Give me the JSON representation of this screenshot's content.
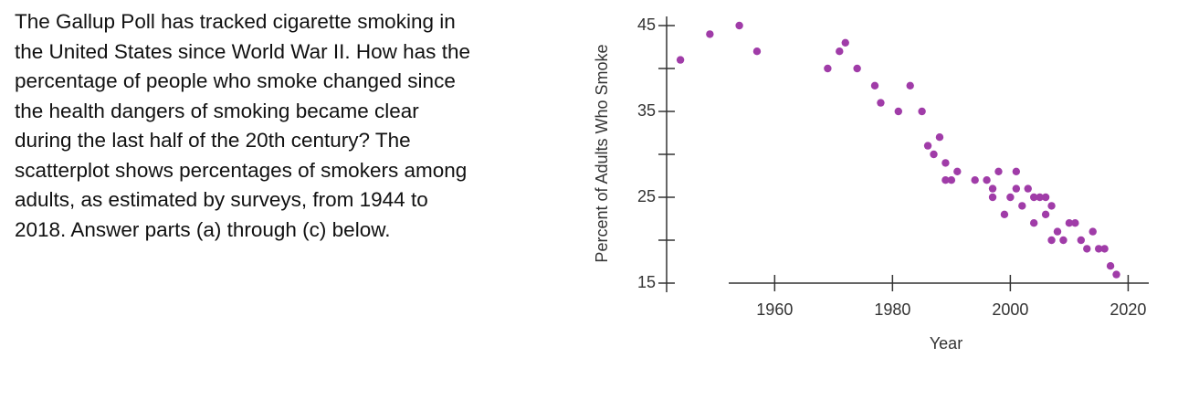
{
  "question": {
    "lines": [
      "The Gallup Poll has tracked cigarette smoking in",
      "the United States since World War II. How has the",
      "percentage of people who smoke changed since",
      "the health dangers of smoking became clear",
      "during the last half of the 20th century? The",
      "scatterplot shows percentages of smokers among",
      "adults, as estimated by surveys, from 1944 to",
      "2018. Answer parts (a) through (c) below."
    ]
  },
  "chart_data": {
    "type": "scatter",
    "x_label": "Year",
    "y_label": "Percent of Adults Who Smoke",
    "color": "#a03ca8",
    "xlim": [
      1952.2,
      2023.5
    ],
    "xticks": [
      1960,
      1980,
      2000,
      2020
    ],
    "ylim": [
      15,
      45
    ],
    "yticks": [
      15,
      25,
      35,
      45
    ],
    "yminorticks": [
      20,
      30,
      40
    ],
    "x": [
      1944,
      1949,
      1954,
      1957,
      1969,
      1971,
      1972,
      1974,
      1977,
      1978,
      1981,
      1983,
      1985,
      1986,
      1987,
      1988,
      1989,
      1989,
      1990,
      1991,
      1994,
      1996,
      1997,
      1997,
      1998,
      1999,
      2000,
      2001,
      2001,
      2002,
      2003,
      2004,
      2004,
      2005,
      2006,
      2006,
      2007,
      2007,
      2008,
      2009,
      2010,
      2011,
      2012,
      2013,
      2014,
      2015,
      2016,
      2017,
      2018
    ],
    "values": [
      41,
      44,
      45,
      42,
      40,
      42,
      43,
      40,
      38,
      36,
      35,
      38,
      35,
      31,
      30,
      32,
      29,
      27,
      27,
      28,
      27,
      27,
      26,
      25,
      28,
      23,
      25,
      28,
      26,
      24,
      26,
      25,
      22,
      25,
      25,
      23,
      24,
      20,
      21,
      20,
      22,
      22,
      20,
      19,
      21,
      19,
      19,
      17,
      16
    ]
  }
}
